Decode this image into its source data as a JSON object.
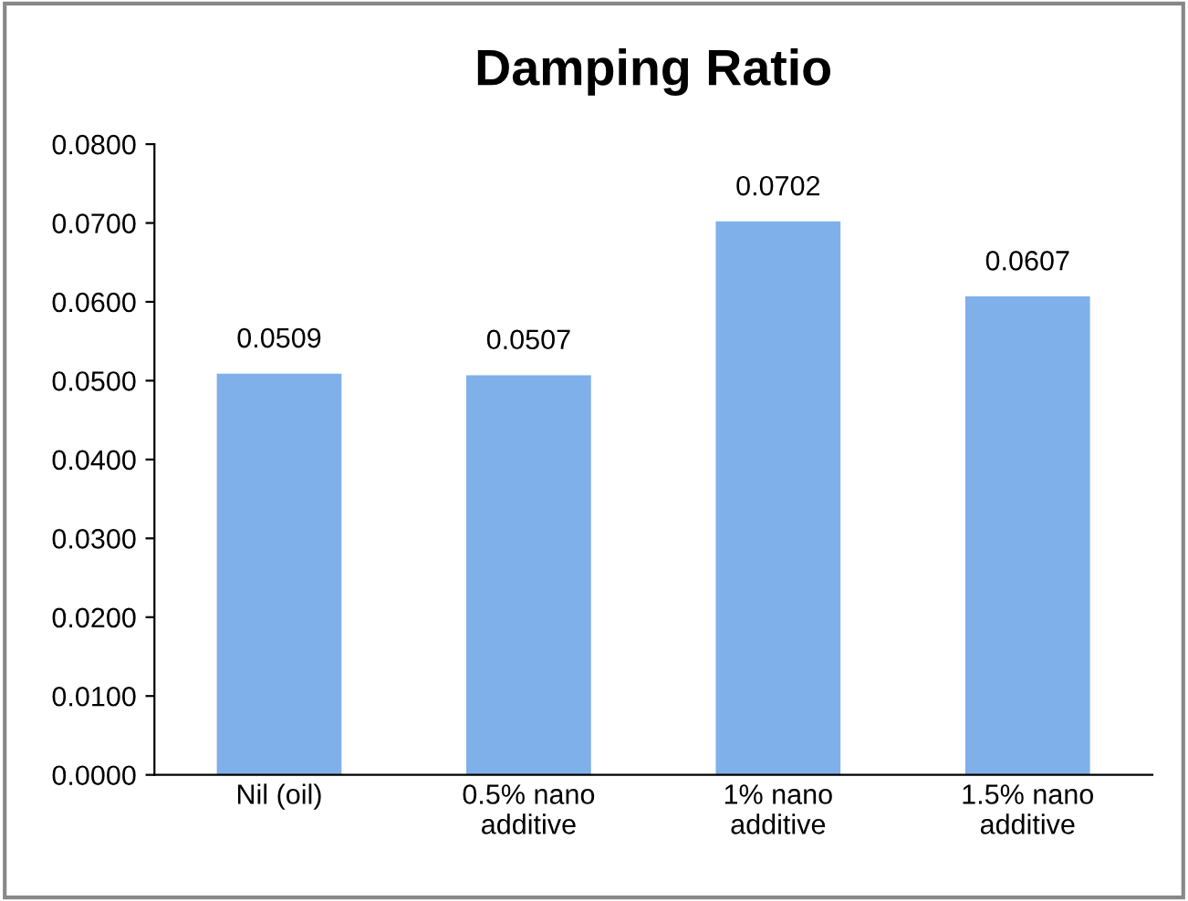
{
  "chart_data": {
    "type": "bar",
    "title": "Damping Ratio",
    "categories": [
      "Nil (oil)",
      "0.5% nano\nadditive",
      "1% nano\nadditive",
      "1.5% nano\nadditive"
    ],
    "values": [
      0.0509,
      0.0507,
      0.0702,
      0.0607
    ],
    "color": "#7fb0ea",
    "data_labels": true,
    "ylim": [
      0,
      0.08
    ],
    "yticks": [
      {
        "value": 0,
        "label": "0.0000"
      },
      {
        "value": 0.01,
        "label": "0.0100"
      },
      {
        "value": 0.02,
        "label": "0.0200"
      },
      {
        "value": 0.03,
        "label": "0.0300"
      },
      {
        "value": 0.04,
        "label": "0.0400"
      },
      {
        "value": 0.05,
        "label": "0.0500"
      },
      {
        "value": 0.06,
        "label": "0.0600"
      },
      {
        "value": 0.07,
        "label": "0.0700"
      },
      {
        "value": 0.08,
        "label": "0.0800"
      }
    ],
    "grid": false
  }
}
